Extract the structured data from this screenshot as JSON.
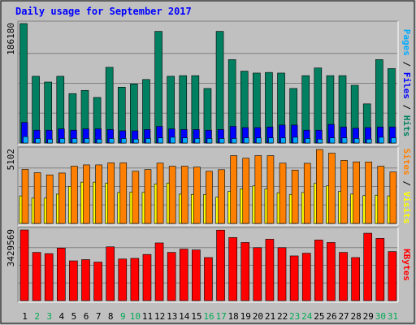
{
  "chart_data": {
    "type": "bar",
    "title": "Daily usage for September 2017",
    "categories": [
      "1",
      "2",
      "3",
      "4",
      "5",
      "6",
      "7",
      "8",
      "9",
      "10",
      "11",
      "12",
      "13",
      "14",
      "15",
      "16",
      "17",
      "18",
      "19",
      "20",
      "21",
      "22",
      "23",
      "24",
      "25",
      "26",
      "27",
      "28",
      "29",
      "30",
      "31"
    ],
    "weekend_days": [
      "2",
      "3",
      "9",
      "10",
      "16",
      "17",
      "23",
      "24",
      "30",
      "31"
    ],
    "panels": [
      {
        "id": "top",
        "ymax_label": "186180",
        "ylim": [
          0,
          186180
        ],
        "right_labels": [
          {
            "text": "Pages",
            "color": "#00aaff"
          },
          {
            "text": " / ",
            "color": "#000000"
          },
          {
            "text": "Files",
            "color": "#0000ff"
          },
          {
            "text": " / ",
            "color": "#000000"
          },
          {
            "text": "Hits",
            "color": "#008060"
          }
        ],
        "series": [
          {
            "name": "Hits",
            "color": "#008060",
            "values": [
              186180,
              104000,
              95000,
              104000,
              77000,
              82000,
              71000,
              118000,
              87000,
              92000,
              99000,
              174000,
              104000,
              105000,
              105000,
              85000,
              174000,
              130000,
              112000,
              109000,
              110000,
              109000,
              85000,
              105000,
              117000,
              105000,
              105000,
              90000,
              61000,
              130000,
              116000
            ]
          },
          {
            "name": "Files",
            "color": "#0000ff",
            "values": [
              32000,
              20000,
              20000,
              22000,
              20000,
              22000,
              22000,
              21000,
              19000,
              19000,
              21000,
              26000,
              22000,
              21000,
              21000,
              20000,
              21000,
              26000,
              24000,
              24000,
              25000,
              28000,
              28000,
              20000,
              20000,
              29000,
              25000,
              23000,
              24000,
              25000,
              25000
            ]
          },
          {
            "name": "Pages",
            "color": "#00aaff",
            "values": [
              10000,
              7000,
              6000,
              7000,
              7000,
              7000,
              6000,
              7000,
              7000,
              6000,
              7000,
              8000,
              9000,
              8000,
              7000,
              7000,
              7000,
              7000,
              8000,
              8000,
              8000,
              8000,
              9000,
              7000,
              6000,
              8000,
              8000,
              7000,
              6000,
              9000,
              8000
            ]
          }
        ]
      },
      {
        "id": "middle",
        "ymax_label": "5102",
        "ylim": [
          0,
          5102
        ],
        "right_labels": [
          {
            "text": "Sites",
            "color": "#ff8000"
          },
          {
            "text": " / ",
            "color": "#000000"
          },
          {
            "text": "Visits",
            "color": "#ffff00"
          }
        ],
        "series": [
          {
            "name": "Visits",
            "color": "#ffff00",
            "values": [
              1900,
              1750,
              1750,
              2020,
              2560,
              2850,
              2850,
              2780,
              2140,
              2170,
              2140,
              2730,
              2780,
              2020,
              2000,
              2000,
              1810,
              2210,
              2390,
              2590,
              2380,
              2110,
              2000,
              2130,
              2760,
              2590,
              2210,
              2030,
              1920,
              1950,
              1900
            ]
          },
          {
            "name": "Sites",
            "color": "#ff8000",
            "values": [
              3730,
              3500,
              3350,
              3480,
              3950,
              4040,
              4040,
              4180,
              4180,
              3600,
              3720,
              4160,
              3950,
              3950,
              3890,
              3600,
              3710,
              4680,
              4500,
              4680,
              4680,
              4160,
              3680,
              4150,
              5102,
              4850,
              4350,
              4250,
              4240,
              3950,
              3550
            ]
          }
        ]
      },
      {
        "id": "bottom",
        "ymax_label": "3429569",
        "ylim": [
          0,
          3429569
        ],
        "right_labels": [
          {
            "text": "KBytes",
            "color": "#ff0000"
          }
        ],
        "series": [
          {
            "name": "KBytes",
            "color": "#ff0000",
            "values": [
              3429569,
              2340000,
              2280000,
              2550000,
              1930000,
              1990000,
              1870000,
              2610000,
              2020000,
              2050000,
              2240000,
              2800000,
              2340000,
              2500000,
              2460000,
              2090000,
              3420000,
              3060000,
              2820000,
              2570000,
              2980000,
              2570000,
              2170000,
              2300000,
              2940000,
              2820000,
              2340000,
              2090000,
              3270000,
              3020000,
              2380000
            ]
          }
        ]
      }
    ]
  },
  "colors": {
    "background": "#c0c0c0",
    "panel": "#c0c0c0",
    "title": "#0000ff",
    "weekday_label": "#000000",
    "weekend_label": "#00aa55"
  }
}
